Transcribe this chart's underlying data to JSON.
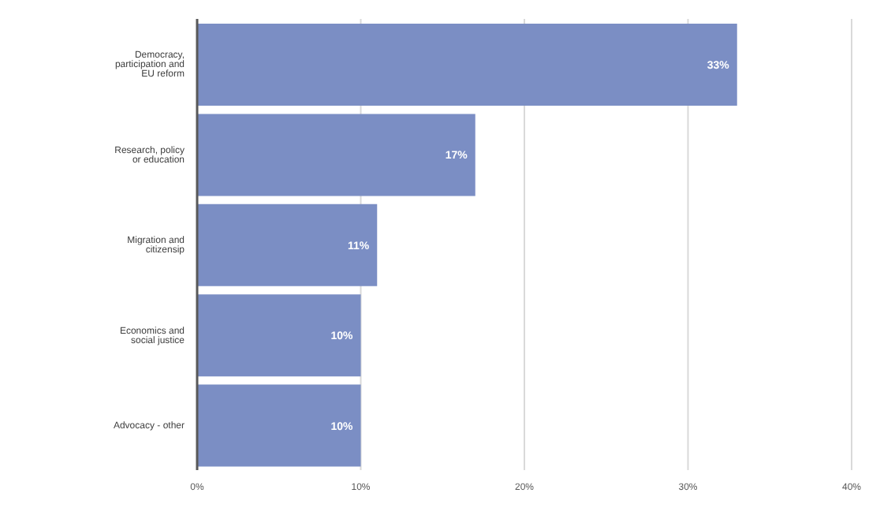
{
  "chart_data": {
    "type": "bar",
    "orientation": "horizontal",
    "categories": [
      "Democracy, participation and EU reform",
      "Research, policy or education",
      "Migration and citizensip",
      "Economics and social justice",
      "Advocacy - other"
    ],
    "values": [
      33,
      17,
      11,
      10,
      10
    ],
    "value_labels": [
      "33%",
      "17%",
      "11%",
      "10%",
      "10%"
    ],
    "color": "#7b8ec4",
    "xlim": [
      0,
      40
    ],
    "xticks": [
      {
        "value": 0,
        "label": "0%"
      },
      {
        "value": 10,
        "label": "10%"
      },
      {
        "value": 20,
        "label": "20%"
      },
      {
        "value": 30,
        "label": "30%"
      },
      {
        "value": 40,
        "label": "40%"
      }
    ],
    "grid": "x"
  }
}
